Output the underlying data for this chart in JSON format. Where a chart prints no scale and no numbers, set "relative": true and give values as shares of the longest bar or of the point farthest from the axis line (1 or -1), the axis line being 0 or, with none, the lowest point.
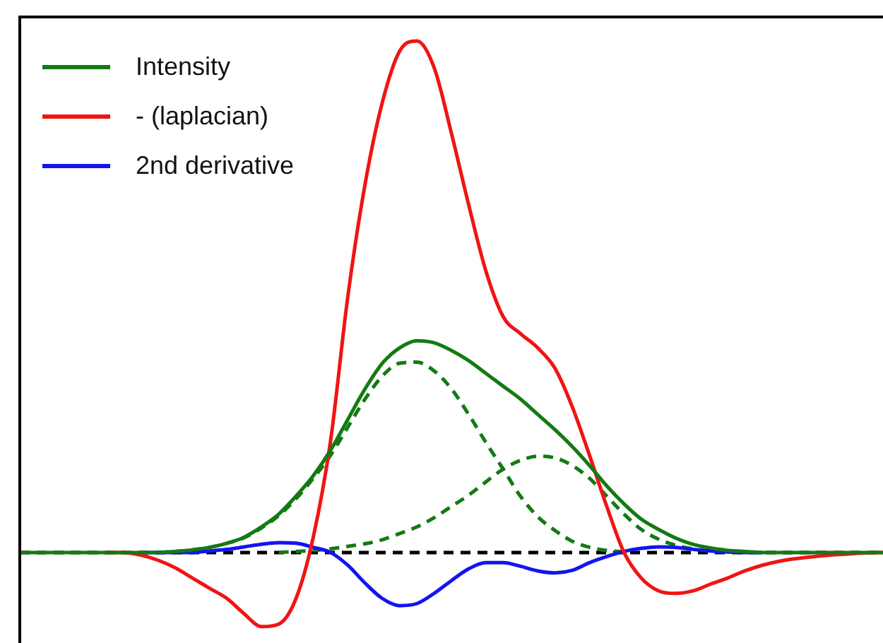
{
  "chart_data": {
    "type": "line",
    "relative": true,
    "legend": "top left",
    "marker": "none",
    "categories": [
      null,
      null,
      null,
      null,
      null,
      null,
      null,
      null,
      null,
      null,
      null,
      null,
      null,
      null,
      null,
      null,
      null,
      null,
      null,
      null,
      null,
      null,
      null,
      null,
      null,
      null,
      null,
      null,
      null,
      null,
      null,
      null,
      null,
      null,
      null,
      null,
      null,
      null,
      null,
      null,
      null,
      null,
      null,
      null,
      null,
      null,
      null,
      null,
      null,
      null,
      null
    ],
    "series": [
      {
        "name": "Intensity",
        "color": "#137a13",
        "line_style": "solid",
        "values": [
          0,
          0,
          0,
          0,
          0,
          0,
          0,
          0,
          0,
          0.002,
          0.005,
          0.01,
          0.018,
          0.03,
          0.05,
          0.075,
          0.11,
          0.15,
          0.2,
          0.26,
          0.32,
          0.37,
          0.4,
          0.414,
          0.41,
          0.395,
          0.375,
          0.35,
          0.325,
          0.3,
          0.27,
          0.24,
          0.207,
          0.17,
          0.13,
          0.095,
          0.065,
          0.045,
          0.028,
          0.016,
          0.009,
          0.004,
          0.002,
          0,
          0,
          0,
          0,
          0,
          0,
          0,
          0
        ]
      },
      {
        "name": "- (laplacian)",
        "color": "#f01414",
        "line_style": "solid",
        "values": [
          null,
          null,
          null,
          null,
          null,
          0,
          0,
          -0.005,
          -0.015,
          -0.03,
          -0.05,
          -0.07,
          -0.09,
          -0.12,
          -0.145,
          -0.14,
          -0.09,
          0.03,
          0.218,
          0.5,
          0.72,
          0.88,
          0.98,
          1,
          0.948,
          0.82,
          0.68,
          0.55,
          0.461,
          0.428,
          0.4,
          0.36,
          0.285,
          0.19,
          0.09,
          0,
          -0.05,
          -0.075,
          -0.08,
          -0.075,
          -0.062,
          -0.05,
          -0.036,
          -0.025,
          -0.017,
          -0.012,
          -0.008,
          -0.005,
          -0.003,
          -0.001,
          0
        ]
      },
      {
        "name": "2nd derivative",
        "color": "#1414f0",
        "line_style": "solid",
        "values": [
          null,
          null,
          null,
          null,
          null,
          null,
          null,
          0,
          0,
          0,
          0,
          0.003,
          0.006,
          0.011,
          0.016,
          0.019,
          0.018,
          0.01,
          0,
          -0.025,
          -0.06,
          -0.09,
          -0.104,
          -0.1,
          -0.08,
          -0.055,
          -0.032,
          -0.02,
          -0.02,
          -0.027,
          -0.036,
          -0.04,
          -0.035,
          -0.02,
          -0.008,
          0.002,
          0.008,
          0.011,
          0.01,
          0.006,
          0.003,
          0.001,
          0,
          0,
          null,
          null,
          null,
          null,
          null,
          null,
          null
        ]
      },
      {
        "color": "#137a13",
        "line_style": "dashed",
        "values": [
          null,
          null,
          null,
          null,
          null,
          null,
          null,
          null,
          0,
          0.002,
          0.005,
          0.01,
          0.018,
          0.029,
          0.048,
          0.072,
          0.105,
          0.145,
          0.19,
          0.245,
          0.3,
          0.345,
          0.37,
          0.372,
          0.355,
          0.32,
          0.27,
          0.215,
          0.163,
          0.11,
          0.07,
          0.043,
          0.022,
          0.01,
          0.004,
          0.001,
          null,
          null,
          null,
          null,
          null,
          null,
          null,
          null,
          null,
          null,
          null,
          null,
          null,
          null,
          null
        ]
      },
      {
        "color": "#137a13",
        "line_style": "dashed",
        "values": [
          null,
          null,
          null,
          null,
          null,
          null,
          null,
          null,
          null,
          null,
          null,
          null,
          null,
          null,
          null,
          0,
          0.002,
          0.004,
          0.007,
          0.012,
          0.017,
          0.025,
          0.037,
          0.05,
          0.068,
          0.09,
          0.112,
          0.138,
          0.163,
          0.18,
          0.188,
          0.185,
          0.17,
          0.145,
          0.11,
          0.075,
          0.045,
          0.026,
          0.014,
          0.007,
          0.003,
          0.001,
          null,
          null,
          null,
          null,
          null,
          null,
          null,
          null,
          null
        ]
      }
    ],
    "ref_lines": [
      {
        "axis": "y",
        "value": 0,
        "color": "#000000",
        "line_style": "dashed"
      }
    ]
  }
}
